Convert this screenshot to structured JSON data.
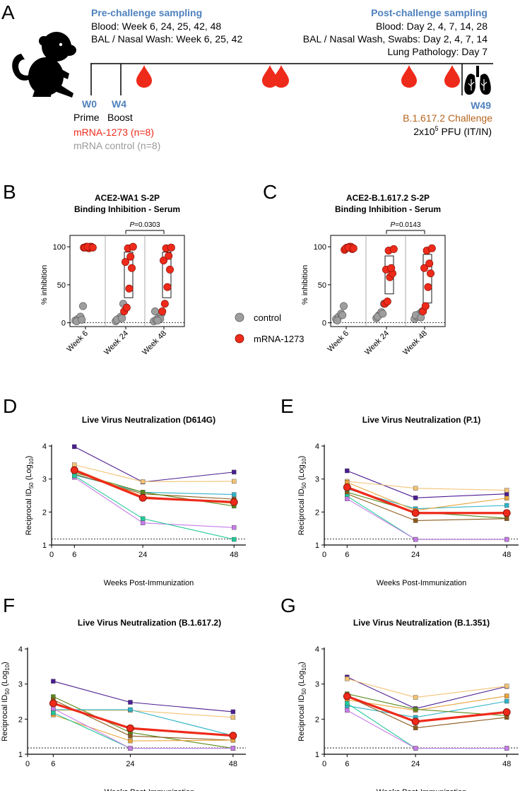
{
  "panelA": {
    "letter": "A",
    "pre_title": "Pre-challenge sampling",
    "pre_line1": "Blood: Week 6, 24, 25, 42, 48",
    "pre_line2": "BAL / Nasal Wash: Week 6, 25, 42",
    "post_title": "Post-challenge sampling",
    "post_line1": "Blood: Day 2, 4, 7, 14, 28",
    "post_line2": "BAL / Nasal Wash, Swabs: Day 2, 4, 7, 14",
    "post_line3": "Lung Pathology: Day 7",
    "w0": "W0",
    "w0_sub": "Prime",
    "w4": "W4",
    "w4_sub": "Boost",
    "group1": "mRNA-1273 (n=8)",
    "group2": "mRNA control (n=8)",
    "w49": "W49",
    "w49_sub": "B.1.617.2 Challenge",
    "dose_a": "2x10",
    "dose_sup": "5",
    "dose_b": " PFU (IT/IN)",
    "colors": {
      "blue": "#4f81bd",
      "red": "#ee2a1b",
      "gray": "#9a9a9a",
      "brown": "#b5651d"
    }
  },
  "legend": {
    "control": "control",
    "mrna": "mRNA-1273"
  },
  "inhibition_panels": [
    {
      "letter": "B",
      "title1": "ACE2-WA1 S-2P",
      "title2": "Binding Inhibition - Serum",
      "pvalue": "=0.0303",
      "ylabel": "% inhibition",
      "yticks": [
        "0",
        "50",
        "100"
      ],
      "groups": [
        "Week 6",
        "Week 24",
        "Week 48"
      ]
    },
    {
      "letter": "C",
      "title1": "ACE2-B.1.617.2 S-2P",
      "title2": "Binding Inhibition - Serum",
      "pvalue": "=0.0143",
      "ylabel": "% inhibition",
      "yticks": [
        "0",
        "50",
        "100"
      ],
      "groups": [
        "Week 6",
        "Week 24",
        "Week 48"
      ]
    }
  ],
  "neut_common": {
    "ylabel_a": "Reciprocal ID",
    "ylabel_sub": "50",
    "ylabel_b": " (Log",
    "ylabel_sub2": "10",
    "ylabel_c": ")",
    "xlabel": "Weeks Post-Immunization",
    "yticks": [
      "1",
      "2",
      "3",
      "4"
    ],
    "xticks": [
      "0",
      "6",
      "24",
      "48"
    ],
    "p_italic": "P"
  },
  "chart_data": [
    {
      "type": "scatter",
      "title": "ACE2-WA1 S-2P Binding Inhibition - Serum",
      "ylabel": "% inhibition",
      "ylim": [
        -5,
        115
      ],
      "categories": [
        "Week 6",
        "Week 24",
        "Week 48"
      ],
      "series": [
        {
          "name": "control",
          "values": [
            [
              3,
              5,
              8,
              22,
              2,
              4
            ],
            [
              2,
              5,
              8,
              25,
              4,
              6
            ],
            [
              2,
              4,
              7,
              12,
              15,
              5,
              3
            ]
          ]
        },
        {
          "name": "mRNA-1273",
          "values": [
            [
              99,
              100,
              98,
              100,
              99,
              100,
              100,
              99
            ],
            [
              15,
              20,
              45,
              72,
              80,
              87,
              98,
              100
            ],
            [
              15,
              25,
              47,
              70,
              82,
              88,
              98,
              99
            ]
          ]
        }
      ],
      "box_ranges": [
        [
          99,
          100
        ],
        [
          33,
          93
        ],
        [
          33,
          93
        ]
      ]
    },
    {
      "type": "scatter",
      "title": "ACE2-B.1.617.2 S-2P Binding Inhibition - Serum",
      "ylabel": "% inhibition",
      "ylim": [
        -5,
        115
      ],
      "categories": [
        "Week 6",
        "Week 24",
        "Week 48"
      ],
      "series": [
        {
          "name": "control",
          "values": [
            [
              5,
              8,
              12,
              22,
              3,
              10
            ],
            [
              6,
              10,
              14,
              25,
              8,
              12
            ],
            [
              5,
              8,
              12,
              15,
              10,
              7
            ]
          ]
        },
        {
          "name": "mRNA-1273",
          "values": [
            [
              96,
              99,
              100,
              97,
              98,
              100,
              99,
              98
            ],
            [
              25,
              28,
              60,
              65,
              70,
              72,
              95,
              97
            ],
            [
              15,
              22,
              47,
              65,
              72,
              78,
              95,
              98
            ]
          ]
        }
      ],
      "box_ranges": [
        [
          96,
          100
        ],
        [
          38,
          88
        ],
        [
          26,
          90
        ]
      ]
    },
    {
      "type": "line",
      "title": "Live Virus Neutralization (D614G)",
      "panel": "D",
      "x": [
        6,
        24,
        48
      ],
      "xlim": [
        0,
        50
      ],
      "ylim": [
        1,
        4
      ],
      "threshold": 1.18,
      "mean": [
        3.27,
        2.43,
        2.3
      ],
      "series": [
        {
          "color": "#4b1d91",
          "values": [
            3.98,
            2.91,
            3.21
          ]
        },
        {
          "color": "#f2c376",
          "values": [
            3.43,
            2.92,
            2.93
          ]
        },
        {
          "color": "#2eb4c8",
          "values": [
            3.12,
            2.6,
            2.53
          ]
        },
        {
          "color": "#8b5a1a",
          "values": [
            3.15,
            2.55,
            2.39
          ]
        },
        {
          "color": "#5a8a1b",
          "values": [
            3.2,
            2.6,
            2.18
          ]
        },
        {
          "color": "#e8a33a",
          "values": [
            3.3,
            2.47,
            2.26
          ]
        },
        {
          "color": "#c77ce8",
          "values": [
            3.05,
            1.67,
            1.53
          ]
        },
        {
          "color": "#22c999",
          "values": [
            3.1,
            1.8,
            1.17
          ]
        }
      ]
    },
    {
      "type": "line",
      "title": "Live Virus Neutralization (P.1)",
      "panel": "E",
      "x": [
        6,
        24,
        48
      ],
      "xlim": [
        0,
        50
      ],
      "ylim": [
        1,
        4
      ],
      "threshold": 1.18,
      "mean": [
        2.75,
        1.97,
        1.97
      ],
      "series": [
        {
          "color": "#4b1d91",
          "values": [
            3.25,
            2.43,
            2.55
          ]
        },
        {
          "color": "#f2c376",
          "values": [
            2.93,
            2.72,
            2.66
          ]
        },
        {
          "color": "#2eb4c8",
          "values": [
            2.7,
            2.1,
            2.2
          ]
        },
        {
          "color": "#e8a33a",
          "values": [
            2.9,
            2.05,
            2.42
          ]
        },
        {
          "color": "#5a8a1b",
          "values": [
            2.6,
            2.0,
            1.81
          ]
        },
        {
          "color": "#8b5a1a",
          "values": [
            2.55,
            1.74,
            1.8
          ]
        },
        {
          "color": "#22c999",
          "values": [
            2.48,
            1.17,
            1.17
          ]
        },
        {
          "color": "#c77ce8",
          "values": [
            2.4,
            1.17,
            1.17
          ]
        }
      ]
    },
    {
      "type": "line",
      "title": "Live Virus Neutralization (B.1.617.2)",
      "panel": "F",
      "x": [
        6,
        24,
        48
      ],
      "xlim": [
        0,
        50
      ],
      "ylim": [
        1,
        4
      ],
      "threshold": 1.18,
      "mean": [
        2.45,
        1.74,
        1.53
      ],
      "series": [
        {
          "color": "#4b1d91",
          "values": [
            3.08,
            2.48,
            2.21
          ]
        },
        {
          "color": "#f2c376",
          "values": [
            2.25,
            2.25,
            2.05
          ]
        },
        {
          "color": "#5a8a1b",
          "values": [
            2.64,
            1.62,
            1.17
          ]
        },
        {
          "color": "#8b5a1a",
          "values": [
            2.55,
            1.52,
            1.4
          ]
        },
        {
          "color": "#2eb4c8",
          "values": [
            2.27,
            2.27,
            1.53
          ]
        },
        {
          "color": "#e8a33a",
          "values": [
            2.12,
            1.38,
            1.4
          ]
        },
        {
          "color": "#22c999",
          "values": [
            2.18,
            1.17,
            1.17
          ]
        },
        {
          "color": "#c77ce8",
          "values": [
            2.3,
            1.17,
            1.17
          ]
        }
      ]
    },
    {
      "type": "line",
      "title": "Live Virus Neutralization (B.1.351)",
      "panel": "G",
      "x": [
        6,
        24,
        48
      ],
      "xlim": [
        0,
        50
      ],
      "ylim": [
        1,
        4
      ],
      "threshold": 1.18,
      "mean": [
        2.65,
        1.93,
        2.2
      ],
      "series": [
        {
          "color": "#4b1d91",
          "values": [
            3.2,
            2.3,
            2.93
          ]
        },
        {
          "color": "#f2c376",
          "values": [
            3.15,
            2.62,
            2.94
          ]
        },
        {
          "color": "#2eb4c8",
          "values": [
            2.38,
            2.05,
            2.51
          ]
        },
        {
          "color": "#e8a33a",
          "values": [
            2.55,
            2.25,
            2.66
          ]
        },
        {
          "color": "#5a8a1b",
          "values": [
            2.72,
            2.28,
            2.1
          ]
        },
        {
          "color": "#8b5a1a",
          "values": [
            2.65,
            1.75,
            2.05
          ]
        },
        {
          "color": "#22c999",
          "values": [
            2.45,
            1.17,
            1.17
          ]
        },
        {
          "color": "#c77ce8",
          "values": [
            2.25,
            1.17,
            1.17
          ]
        }
      ]
    }
  ]
}
